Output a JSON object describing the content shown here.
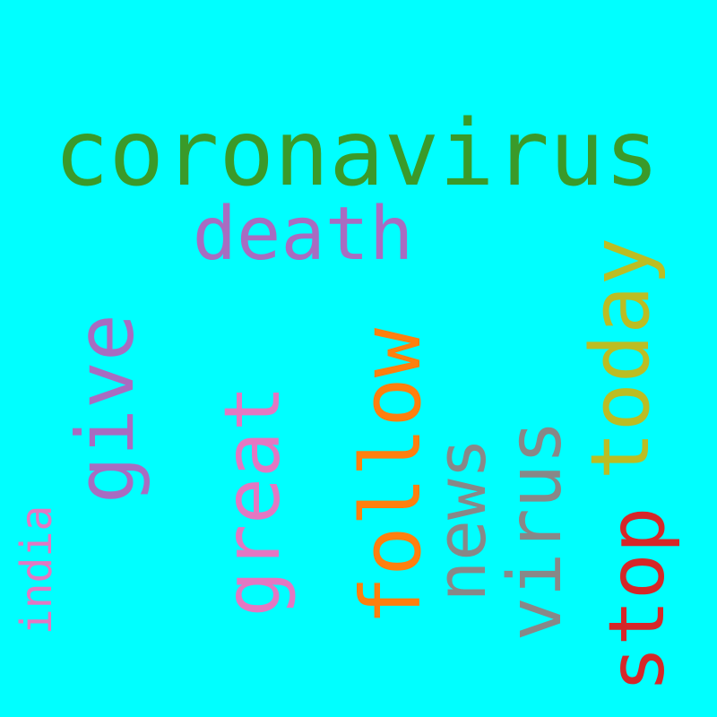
{
  "background_color": "#00ffff",
  "words": {
    "coronavirus": {
      "text": "coronavirus",
      "color": "#3a9a2a",
      "orientation": "horizontal"
    },
    "death": {
      "text": "death",
      "color": "#a86cc1",
      "orientation": "horizontal"
    },
    "give": {
      "text": "give",
      "color": "#a86cc1",
      "orientation": "vertical"
    },
    "great": {
      "text": "great",
      "color": "#e377c2",
      "orientation": "vertical"
    },
    "follow": {
      "text": "follow",
      "color": "#ff7f0e",
      "orientation": "vertical"
    },
    "news": {
      "text": "news",
      "color": "#888888",
      "orientation": "vertical"
    },
    "virus": {
      "text": "virus",
      "color": "#888888",
      "orientation": "vertical"
    },
    "today": {
      "text": "today",
      "color": "#bcbd22",
      "orientation": "vertical"
    },
    "stop": {
      "text": "stop",
      "color": "#d62728",
      "orientation": "vertical"
    },
    "india": {
      "text": "india",
      "color": "#e377c2",
      "orientation": "vertical"
    }
  }
}
